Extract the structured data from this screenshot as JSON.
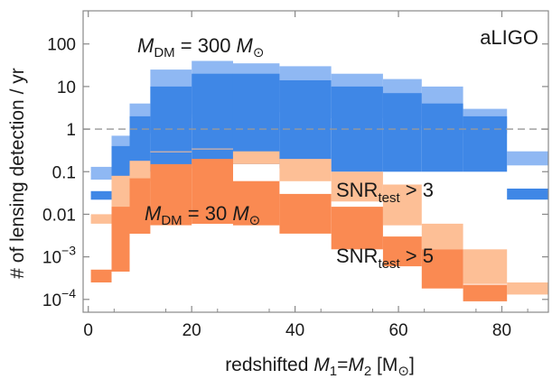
{
  "chart_data": {
    "type": "histogram-bands",
    "xlabel": {
      "prefix": "redshifted ",
      "m1": "M",
      "sub1": "1",
      "eq": "=",
      "m2": "M",
      "sub2": "2",
      "unit_open": " [M",
      "unit_sub": "⊙",
      "unit_close": "]"
    },
    "ylabel": "# of lensing detection / yr",
    "x_ticks": [
      {
        "value": 0,
        "label": "0"
      },
      {
        "value": 20,
        "label": "20"
      },
      {
        "value": 40,
        "label": "40"
      },
      {
        "value": 60,
        "label": "60"
      },
      {
        "value": 80,
        "label": "80"
      }
    ],
    "y_ticks": [
      {
        "value": 100,
        "base": "100",
        "exp": ""
      },
      {
        "value": 10,
        "base": "10",
        "exp": ""
      },
      {
        "value": 1,
        "base": "1",
        "exp": ""
      },
      {
        "value": 0.1,
        "base": "0.1",
        "exp": ""
      },
      {
        "value": 0.01,
        "base": "0.01",
        "exp": ""
      },
      {
        "value": 0.001,
        "base": "10",
        "exp": "−3"
      },
      {
        "value": 0.0001,
        "base": "10",
        "exp": "−4"
      }
    ],
    "xlim": [
      -1,
      89
    ],
    "ylim": [
      5e-05,
      600
    ],
    "y_scale": "log",
    "reference_line": {
      "y": 1,
      "style": "dashed",
      "color": "#999999"
    },
    "bins": [
      [
        0.5,
        4.5
      ],
      [
        4.5,
        8
      ],
      [
        8,
        12
      ],
      [
        12,
        20
      ],
      [
        20,
        28
      ],
      [
        28,
        37
      ],
      [
        37,
        47
      ],
      [
        47,
        57
      ],
      [
        57,
        64.5
      ],
      [
        64.5,
        72.5
      ],
      [
        72.5,
        81
      ],
      [
        81,
        89
      ]
    ],
    "series": [
      {
        "panel": "M_DM = 300 M_sun",
        "label": "SNR_test > 3",
        "color": "#8fb8f3",
        "low": [
          0.065,
          0.4,
          0.8,
          1.8,
          2.2,
          2.5,
          2.5,
          1.8,
          1.2,
          1.3,
          0.8,
          0.14
        ],
        "high": [
          0.13,
          0.7,
          4,
          25,
          40,
          35,
          30,
          20,
          15,
          10,
          3,
          0.3
        ]
      },
      {
        "panel": "M_DM = 300 M_sun",
        "label": "SNR_test > 5",
        "color": "#3f87e6",
        "low": [
          0.022,
          0.04,
          0.1,
          0.12,
          0.15,
          0.15,
          0.12,
          0.1,
          0.1,
          0.1,
          0.1,
          0.022
        ],
        "high": [
          0.035,
          0.4,
          2,
          10,
          20,
          20,
          14,
          10,
          7,
          4,
          2,
          0.04
        ]
      },
      {
        "panel": "M_DM = 30 M_sun",
        "label": "SNR_test > 3",
        "color": "#fdbf96",
        "low": [
          0.006,
          0.012,
          0.06,
          0.3,
          0.35,
          0.15,
          0.06,
          0.02,
          0.0055,
          0.0015,
          0.00023,
          0.00013
        ],
        "high": [
          0.01,
          0.08,
          0.18,
          0.3,
          0.35,
          0.3,
          0.2,
          0.1,
          0.05,
          0.006,
          0.0015,
          0.00025
        ]
      },
      {
        "panel": "M_DM = 30 M_sun",
        "label": "SNR_test > 5",
        "color": "#fa8a52",
        "low": [
          0.00025,
          0.00045,
          0.0035,
          0.0055,
          0.006,
          0.0055,
          0.0035,
          0.0015,
          0.0006,
          0.00018,
          9e-05,
          null
        ],
        "high": [
          0.0005,
          0.015,
          0.07,
          0.15,
          0.2,
          0.06,
          0.03,
          0.015,
          0.003,
          0.0015,
          0.00022,
          null
        ]
      }
    ],
    "annotations": {
      "detector": "aLIGO",
      "dm300": {
        "m": "M",
        "sub": "DM",
        "mid": " = 300 ",
        "m2": "M",
        "sun": "⊙"
      },
      "dm30": {
        "m": "M",
        "sub": "DM",
        "mid": " = 30 ",
        "m2": "M",
        "sun": "⊙"
      },
      "snr3": {
        "base": "SNR",
        "sub": "test",
        "tail": " > 3"
      },
      "snr5": {
        "base": "SNR",
        "sub": "test",
        "tail": " > 5"
      }
    }
  }
}
